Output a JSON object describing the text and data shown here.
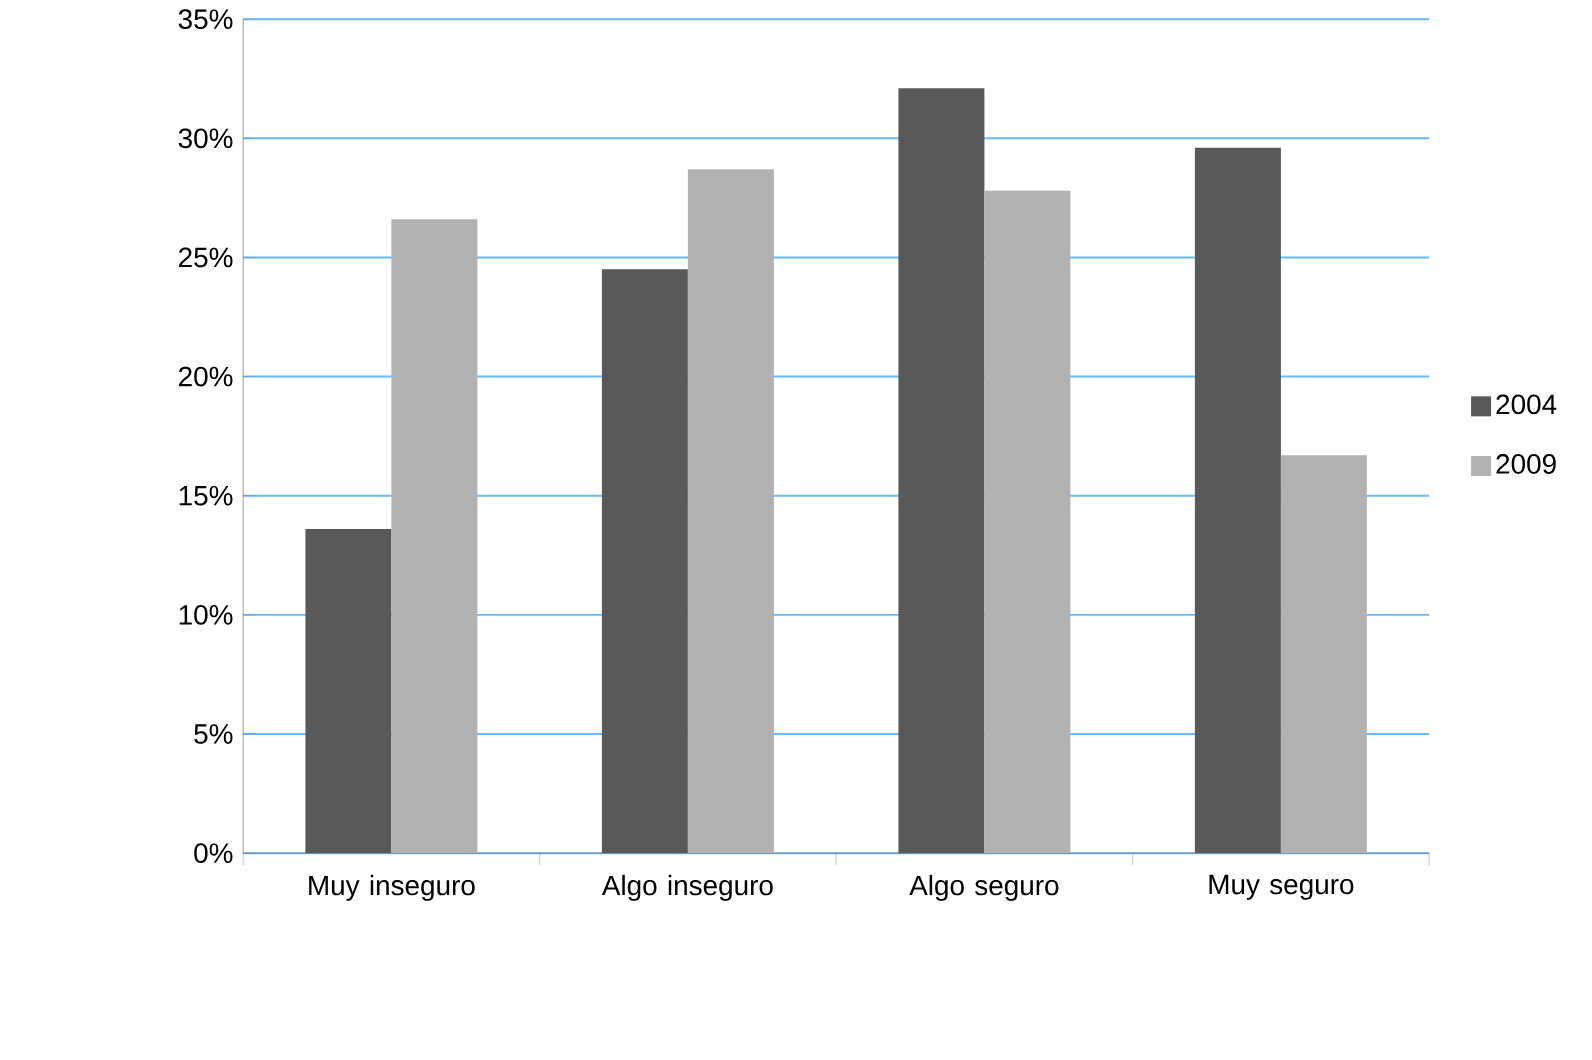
{
  "chart_data": {
    "type": "bar",
    "categories": [
      "Muy inseguro",
      "Algo inseguro",
      "Algo seguro",
      "Muy seguro"
    ],
    "series": [
      {
        "name": "2004",
        "color": "#595959",
        "values": [
          13.6,
          24.5,
          32.1,
          29.6
        ]
      },
      {
        "name": "2009",
        "color": "#b2b2b2",
        "values": [
          26.6,
          28.7,
          27.8,
          16.7
        ]
      }
    ],
    "ylim": [
      0,
      35
    ],
    "yticks": [
      {
        "value": 0,
        "label": "0%"
      },
      {
        "value": 5,
        "label": "5%"
      },
      {
        "value": 10,
        "label": "10%"
      },
      {
        "value": 15,
        "label": "15%"
      },
      {
        "value": 20,
        "label": "20%"
      },
      {
        "value": 25,
        "label": "25%"
      },
      {
        "value": 30,
        "label": "30%"
      },
      {
        "value": 35,
        "label": "35%"
      }
    ],
    "grid": "y",
    "legend": "right"
  }
}
